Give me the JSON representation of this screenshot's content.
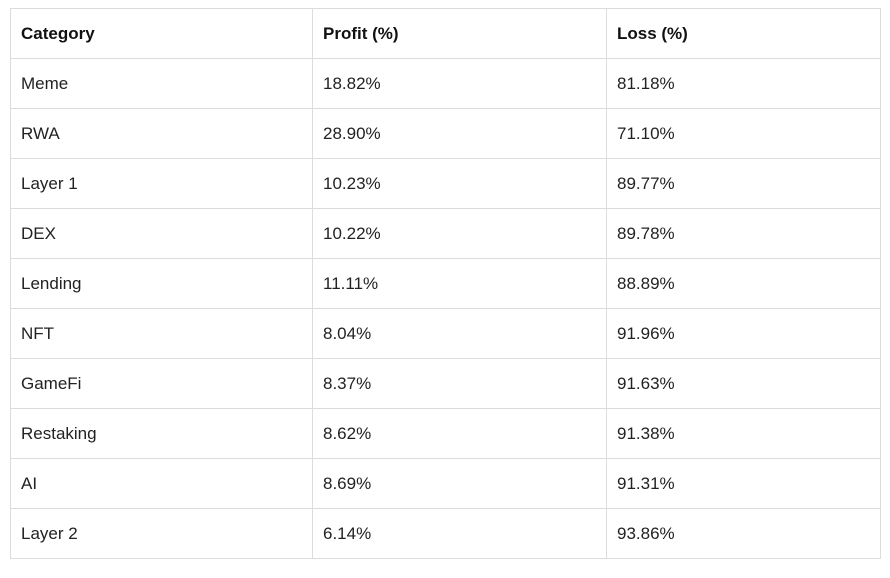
{
  "table": {
    "headers": [
      "Category",
      "Profit (%)",
      "Loss (%)"
    ],
    "rows": [
      [
        "Meme",
        "18.82%",
        "81.18%"
      ],
      [
        "RWA",
        "28.90%",
        "71.10%"
      ],
      [
        "Layer 1",
        "10.23%",
        "89.77%"
      ],
      [
        "DEX",
        "10.22%",
        "89.78%"
      ],
      [
        "Lending",
        "11.11%",
        "88.89%"
      ],
      [
        "NFT",
        "8.04%",
        "91.96%"
      ],
      [
        "GameFi",
        "8.37%",
        "91.63%"
      ],
      [
        "Restaking",
        "8.62%",
        "91.38%"
      ],
      [
        "AI",
        "8.69%",
        "91.31%"
      ],
      [
        "Layer 2",
        "6.14%",
        "93.86%"
      ]
    ]
  }
}
